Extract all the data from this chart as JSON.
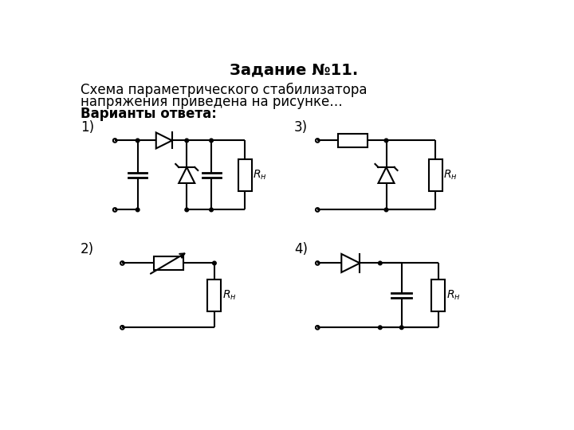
{
  "title": "Задание №11.",
  "line1": "Схема параметрического стабилизатора",
  "line2": "напряжения приведена на рисунке…",
  "line3": "Варианты ответа:",
  "label1": "1)",
  "label2": "2)",
  "label3": "3)",
  "label4": "4)",
  "bg_color": "#ffffff",
  "line_color": "#000000",
  "font_size_title": 14,
  "font_size_text": 12,
  "font_size_label": 12
}
